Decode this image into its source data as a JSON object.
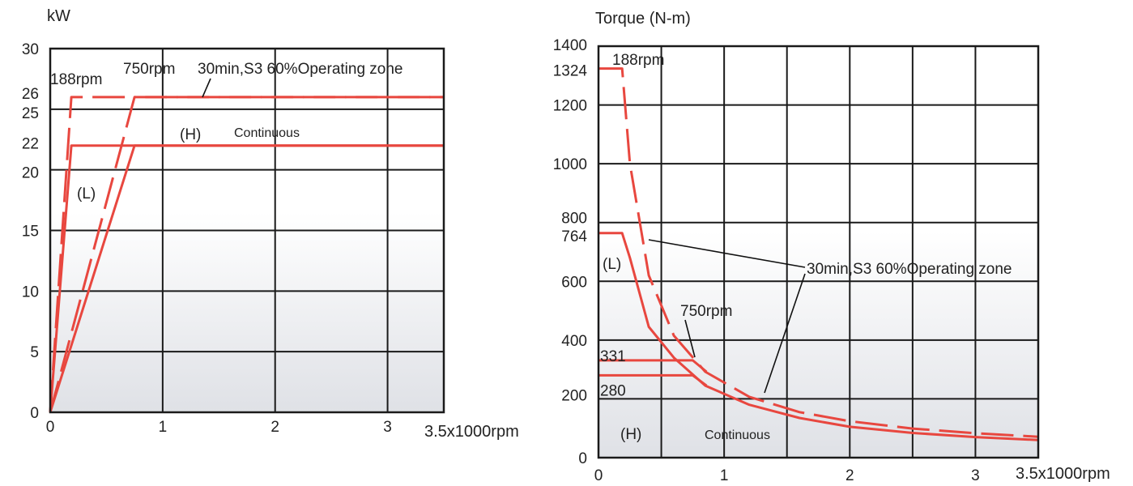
{
  "chart_data": [
    {
      "type": "line",
      "ylabel": "kW",
      "xlabel": "3.5x1000rpm",
      "xlim": [
        0,
        3.5
      ],
      "ylim": [
        0,
        30
      ],
      "x_ticks": [
        "0",
        "1",
        "2",
        "3"
      ],
      "y_ticks": [
        "0",
        "5",
        "10",
        "15",
        "20",
        "22",
        "25",
        "26",
        "30"
      ],
      "grid": true,
      "series": [
        {
          "name": "30min,S3 60%Operating zone",
          "style": "dashed",
          "x": [
            0,
            0.188,
            3.5
          ],
          "y": [
            0,
            26,
            26
          ]
        },
        {
          "name": "30min,S3 60%Operating zone",
          "style": "dashed",
          "x": [
            0,
            0.75,
            3.5
          ],
          "y": [
            0,
            26,
            26
          ]
        },
        {
          "name": "Continuous",
          "style": "solid",
          "x": [
            0,
            0.188,
            3.5
          ],
          "y": [
            0,
            22,
            22
          ]
        },
        {
          "name": "Continuous",
          "style": "solid",
          "x": [
            0,
            0.75,
            3.5
          ],
          "y": [
            0,
            22,
            22
          ]
        }
      ],
      "annotations": {
        "low_speed_knee": "188rpm",
        "high_speed_knee": "750rpm",
        "operating_zone": "30min,S3 60%Operating zone",
        "winding_high": "(H)",
        "winding_low": "(L)",
        "continuous": "Continuous"
      }
    },
    {
      "type": "line",
      "ylabel": "Torque (N-m)",
      "xlabel": "3.5x1000rpm",
      "xlim": [
        0,
        3.5
      ],
      "ylim": [
        0,
        1400
      ],
      "x_ticks": [
        "0",
        "1",
        "2",
        "3"
      ],
      "y_ticks": [
        "0",
        "200",
        "280",
        "331",
        "400",
        "600",
        "764",
        "800",
        "1000",
        "1200",
        "1324",
        "1400"
      ],
      "grid": true,
      "series": [
        {
          "name": "30min,S3 60%Operating zone",
          "style": "dashed",
          "x": [
            0,
            0.188,
            0.25,
            0.4,
            0.6,
            0.85,
            1.2,
            1.6,
            2.0,
            2.5,
            3.0,
            3.5
          ],
          "y": [
            1324,
            1324,
            1000,
            620,
            415,
            292,
            207,
            155,
            124,
            99,
            83,
            71
          ]
        },
        {
          "name": "Continuous",
          "style": "solid",
          "x": [
            0,
            0.188,
            0.25,
            0.4,
            0.6,
            0.85,
            1.2,
            1.6,
            2.0,
            2.5,
            3.0,
            3.5
          ],
          "y": [
            764,
            764,
            680,
            445,
            340,
            245,
            180,
            135,
            105,
            84,
            70,
            60
          ]
        },
        {
          "name": "(H) 30min",
          "style": "solid",
          "x": [
            0,
            0.75,
            0.86
          ],
          "y": [
            331,
            331,
            292
          ]
        },
        {
          "name": "(H) continuous",
          "style": "solid",
          "x": [
            0,
            0.75,
            0.86
          ],
          "y": [
            280,
            280,
            245
          ]
        }
      ],
      "annotations": {
        "low_speed_knee": "188rpm",
        "high_speed_knee": "750rpm",
        "operating_zone": "30min,S3 60%Operating zone",
        "winding_high": "(H)",
        "winding_low": "(L)",
        "continuous": "Continuous"
      }
    }
  ]
}
